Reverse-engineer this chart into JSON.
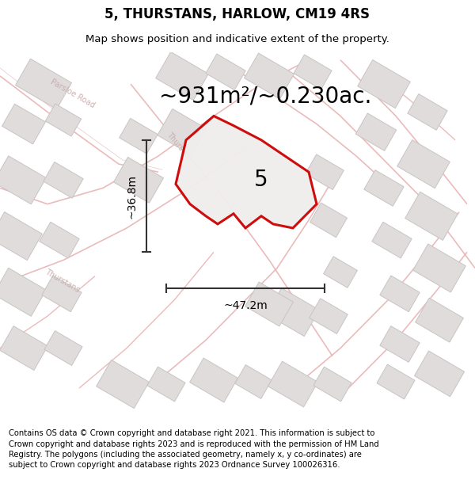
{
  "title": "5, THURSTANS, HARLOW, CM19 4RS",
  "subtitle": "Map shows position and indicative extent of the property.",
  "area_text": "~931m²/~0.230ac.",
  "property_number": "5",
  "width_label": "~47.2m",
  "height_label": "~36.8m",
  "footer_text": "Contains OS data © Crown copyright and database right 2021. This information is subject to Crown copyright and database rights 2023 and is reproduced with the permission of HM Land Registry. The polygons (including the associated geometry, namely x, y co-ordinates) are subject to Crown copyright and database rights 2023 Ordnance Survey 100026316.",
  "bg_color": "#ffffff",
  "map_bg_color": "#f5f3f3",
  "property_fill": "#f0eeed",
  "property_edge_color": "#cc0000",
  "road_color": "#e8b4b4",
  "road_outline_color": "#d09090",
  "building_face_color": "#e0dcdc",
  "building_edge_color": "#c8c4c4",
  "title_fontsize": 12,
  "subtitle_fontsize": 9.5,
  "area_fontsize": 20,
  "property_label_fontsize": 20,
  "dim_fontsize": 10,
  "footer_fontsize": 7.2,
  "road_label_color": "#c8a8a8",
  "road_label_size": 7
}
